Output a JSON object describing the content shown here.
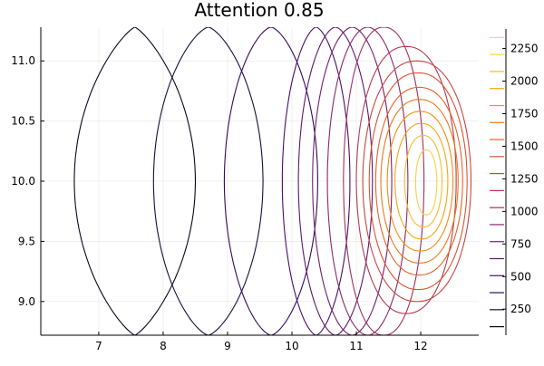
{
  "chart_data": {
    "type": "contour",
    "title": "Attention 0.85",
    "xlabel": "",
    "ylabel": "",
    "xlim": [
      6.1,
      12.9
    ],
    "ylim": [
      8.72,
      11.28
    ],
    "x_ticks": [
      7,
      8,
      9,
      10,
      11,
      12
    ],
    "y_ticks": [
      9.0,
      9.5,
      10.0,
      10.5,
      11.0
    ],
    "x_tick_labels": [
      "7",
      "8",
      "9",
      "10",
      "11",
      "12"
    ],
    "y_tick_labels": [
      "9.0",
      "9.5",
      "10.0",
      "10.5",
      "11.0"
    ],
    "grid": true,
    "colormap": "inferno",
    "colorbar": {
      "range": [
        50,
        2400
      ],
      "ticks": [
        250,
        500,
        750,
        1000,
        1250,
        1500,
        1750,
        2000,
        2250
      ],
      "tick_labels": [
        "250",
        "500",
        "750",
        "1000",
        "1250",
        "1500",
        "1750",
        "2000",
        "2250"
      ]
    },
    "peak": {
      "x": 12.15,
      "y": 10.0
    },
    "levels": [
      {
        "value": 100,
        "color": "#0a0720",
        "x_ext": [
          6.62,
          8.5
        ],
        "y_ext": [
          8.72,
          11.28
        ],
        "sharp": 1.25
      },
      {
        "value": 200,
        "color": "#1c0c3f",
        "x_ext": [
          7.85,
          9.55
        ],
        "y_ext": [
          8.72,
          11.28
        ],
        "sharp": 1.45
      },
      {
        "value": 350,
        "color": "#320a5e",
        "x_ext": [
          8.95,
          10.4
        ],
        "y_ext": [
          8.72,
          11.28
        ],
        "sharp": 1.55
      },
      {
        "value": 500,
        "color": "#47106a",
        "x_ext": [
          9.85,
          10.9
        ],
        "y_ext": [
          8.72,
          11.28
        ],
        "sharp": 1.6
      },
      {
        "value": 650,
        "color": "#5c186e",
        "x_ext": [
          10.1,
          11.25
        ],
        "y_ext": [
          8.72,
          11.28
        ],
        "sharp": 1.7
      },
      {
        "value": 800,
        "color": "#72206c",
        "x_ext": [
          10.32,
          11.55
        ],
        "y_ext": [
          8.72,
          11.28
        ],
        "sharp": 1.8
      },
      {
        "value": 950,
        "color": "#8a2966",
        "x_ext": [
          10.55,
          11.8
        ],
        "y_ext": [
          8.72,
          11.28
        ],
        "sharp": 1.9
      },
      {
        "value": 1100,
        "color": "#a1305c",
        "x_ext": [
          10.8,
          12.05
        ],
        "y_ext": [
          8.72,
          11.28
        ],
        "sharp": 2.0
      },
      {
        "value": 1250,
        "color": "#b5394f",
        "x_ext": [
          11.0,
          12.55
        ],
        "y_ext": [
          8.9,
          11.12
        ],
        "sharp": 2.0
      },
      {
        "value": 1400,
        "color": "#c84540",
        "x_ext": [
          11.1,
          12.78
        ],
        "y_ext": [
          9.0,
          11.0
        ],
        "sharp": 2.0
      },
      {
        "value": 1550,
        "color": "#d95233",
        "x_ext": [
          11.2,
          12.72
        ],
        "y_ext": [
          9.1,
          10.9
        ],
        "sharp": 2.0
      },
      {
        "value": 1700,
        "color": "#e56325",
        "x_ext": [
          11.3,
          12.65
        ],
        "y_ext": [
          9.22,
          10.78
        ],
        "sharp": 2.0
      },
      {
        "value": 1850,
        "color": "#ef7717",
        "x_ext": [
          11.38,
          12.58
        ],
        "y_ext": [
          9.32,
          10.68
        ],
        "sharp": 2.0
      },
      {
        "value": 2000,
        "color": "#f68d0d",
        "x_ext": [
          11.48,
          12.5
        ],
        "y_ext": [
          9.42,
          10.58
        ],
        "sharp": 2.0
      },
      {
        "value": 2100,
        "color": "#f9a30e",
        "x_ext": [
          11.6,
          12.42
        ],
        "y_ext": [
          9.52,
          10.48
        ],
        "sharp": 2.0
      },
      {
        "value": 2200,
        "color": "#f8bb2a",
        "x_ext": [
          11.75,
          12.33
        ],
        "y_ext": [
          9.62,
          10.38
        ],
        "sharp": 2.0
      },
      {
        "value": 2300,
        "color": "#f3d24a",
        "x_ext": [
          11.92,
          12.25
        ],
        "y_ext": [
          9.72,
          10.26
        ],
        "sharp": 2.0
      }
    ]
  }
}
